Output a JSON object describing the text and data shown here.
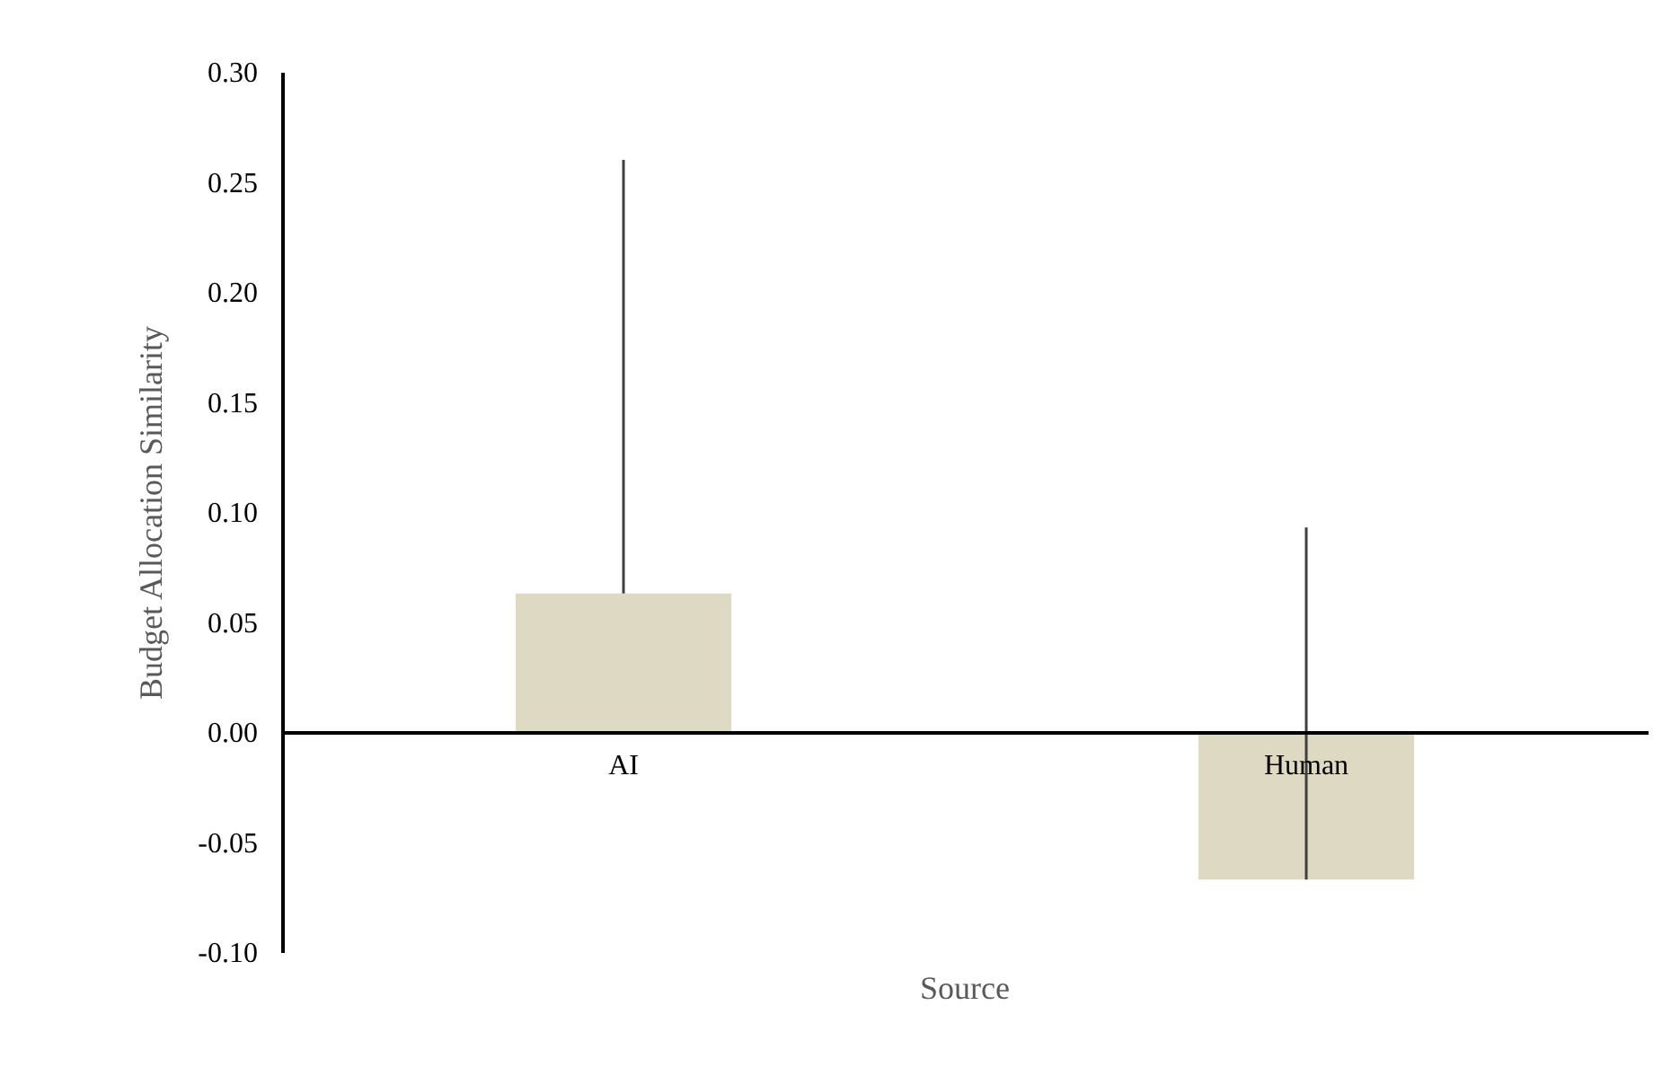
{
  "chart_data": {
    "type": "bar",
    "categories": [
      "AI",
      "Human"
    ],
    "values": [
      0.063,
      -0.067
    ],
    "errors": [
      [
        0.063,
        0.26
      ],
      [
        -0.067,
        0.093
      ]
    ],
    "color": "#ddd9c3",
    "xlabel": "Source",
    "ylabel": "Budget Allocation Similarity",
    "ylim": [
      -0.1,
      0.3
    ],
    "yticks": [
      {
        "value": -0.1,
        "label": "-0.10"
      },
      {
        "value": -0.05,
        "label": "-0.05"
      },
      {
        "value": 0,
        "label": "0.00"
      },
      {
        "value": 0.05,
        "label": "0.05"
      },
      {
        "value": 0.1,
        "label": "0.10"
      },
      {
        "value": 0.15,
        "label": "0.15"
      },
      {
        "value": 0.2,
        "label": "0.20"
      },
      {
        "value": 0.25,
        "label": "0.25"
      },
      {
        "value": 0.3,
        "label": "0.30"
      }
    ],
    "grid": false
  }
}
